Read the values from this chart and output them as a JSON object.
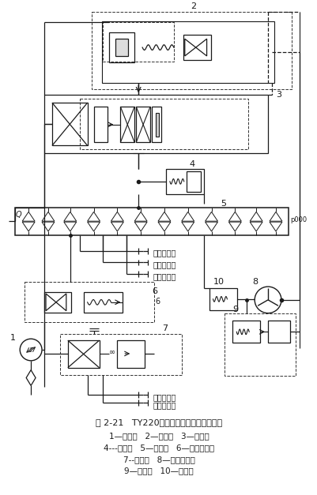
{
  "title_line1": "图 2-21   TY220推土机液压变速系统原理图",
  "title_line2": "1—变速泵   2—调压阀   3—快回阀",
  "title_line3": "4---减压阀   5—变速阀   6—启动安全阀",
  "title_line4": "7--换向阀   8—液力变矩器",
  "title_line5": "9—溢流阀   10—背压阀",
  "bg_color": "#ffffff",
  "lc": "#1a1a1a",
  "dc": "#333333",
  "label_2": "2",
  "label_3": "3",
  "label_4": "4",
  "label_5": "5",
  "label_6": "6",
  "label_7": "7",
  "label_8": "8",
  "label_9": "9",
  "label_10": "10",
  "label_1": "1",
  "clutch5": "第五离合器",
  "clutch4": "第四离合器",
  "clutch3": "第三离合器",
  "clutch2": "第二离合器",
  "clutch1": "第一离合器"
}
